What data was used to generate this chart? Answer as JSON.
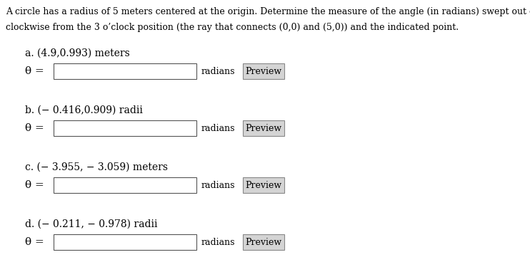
{
  "title_line1": "A circle has a radius of 5 meters centered at the origin. Determine the measure of the angle (in radians) swept out counter-",
  "title_line2": "clockwise from the 3 o’clock position (the ray that connects (0,0) and (5,0)) and the indicated point.",
  "items": [
    {
      "label": "a.",
      "point": "(4.9,0.993)",
      "unit": "meters"
    },
    {
      "label": "b.",
      "point": "(− 0.416,0.909)",
      "unit": "radii"
    },
    {
      "label": "c.",
      "point": "(− 3.955, − 3.059)",
      "unit": "meters"
    },
    {
      "label": "d.",
      "point": "(− 0.211, − 0.978)",
      "unit": "radii"
    }
  ],
  "theta_symbol": "θ",
  "equals": "=",
  "radians_label": "radians",
  "preview_label": "Preview",
  "bg_color": "#ffffff",
  "text_color": "#000000",
  "box_facecolor": "#ffffff",
  "box_edgecolor": "#555555",
  "preview_facecolor": "#d4d4d4",
  "preview_edgecolor": "#888888",
  "font_size_title": 9.0,
  "font_size_item": 10.0,
  "font_size_theta": 11.0,
  "font_size_radians": 9.0,
  "font_size_preview": 9.0
}
